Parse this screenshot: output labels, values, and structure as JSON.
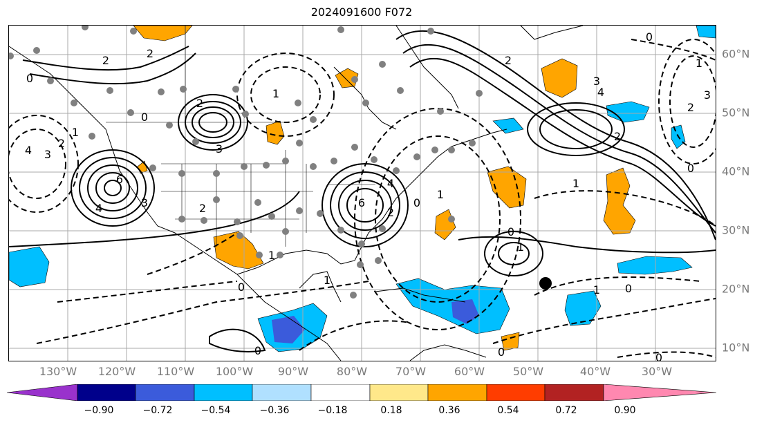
{
  "title": "2024091600 F072",
  "map": {
    "lon_labels": [
      "130°W",
      "120°W",
      "110°W",
      "100°W",
      "90°W",
      "80°W",
      "70°W",
      "60°W",
      "50°W",
      "40°W",
      "30°W"
    ],
    "lat_labels": [
      "60°N",
      "50°N",
      "40°N",
      "30°N",
      "20°N",
      "10°N"
    ],
    "contour_labels": [
      "2",
      "2",
      "0",
      "1",
      "6",
      "4",
      "3",
      "2",
      "0",
      "1",
      "2",
      "3",
      "4",
      "6",
      "2",
      "4",
      "3",
      "1",
      "0",
      "2",
      "0",
      "1",
      "0",
      "1",
      "0",
      "1",
      "2",
      "4",
      "3",
      "2",
      "0",
      "1",
      "0",
      "1",
      "3",
      "2",
      "0",
      "0",
      "1",
      "0"
    ],
    "colors": {
      "pos_low": "#ffa500",
      "neg_low": "#00bfff",
      "neg_mid": "#3b5bdb",
      "grid": "#a8a8a8",
      "contour": "#000000",
      "station": "#808080"
    }
  },
  "colorbar": {
    "ticks": [
      "−0.90",
      "−0.72",
      "−0.54",
      "−0.36",
      "−0.18",
      "0.18",
      "0.36",
      "0.54",
      "0.72",
      "0.90"
    ],
    "colors": [
      "#9932cc",
      "#00008b",
      "#3b5bdb",
      "#00bfff",
      "#b0e0ff",
      "#ffffff",
      "#ffe88a",
      "#ffa500",
      "#ff3d00",
      "#b22222",
      "#ff88b0"
    ]
  }
}
